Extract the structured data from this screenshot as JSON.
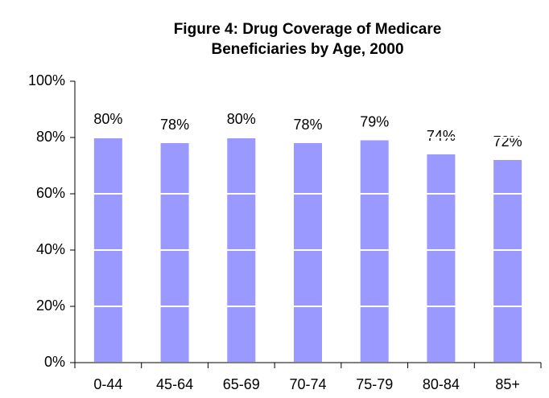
{
  "chart_data": {
    "type": "bar",
    "title": [
      "Figure 4: Drug Coverage of Medicare",
      "Beneficiaries by Age, 2000"
    ],
    "categories": [
      "0-44",
      "45-64",
      "65-69",
      "70-74",
      "75-79",
      "80-84",
      "85+"
    ],
    "values": [
      80,
      78,
      80,
      78,
      79,
      74,
      72
    ],
    "value_labels": [
      "80%",
      "78%",
      "80%",
      "78%",
      "79%",
      "74%",
      "72%"
    ],
    "color": "#9999ff",
    "ylim": [
      0,
      100
    ],
    "yticks": [
      {
        "value": 0,
        "label": "0%"
      },
      {
        "value": 20,
        "label": "20%"
      },
      {
        "value": 40,
        "label": "40%"
      },
      {
        "value": 60,
        "label": "60%"
      },
      {
        "value": 80,
        "label": "80%"
      },
      {
        "value": 100,
        "label": "100%"
      }
    ],
    "grid": true,
    "grid_color": "#ffffff"
  }
}
